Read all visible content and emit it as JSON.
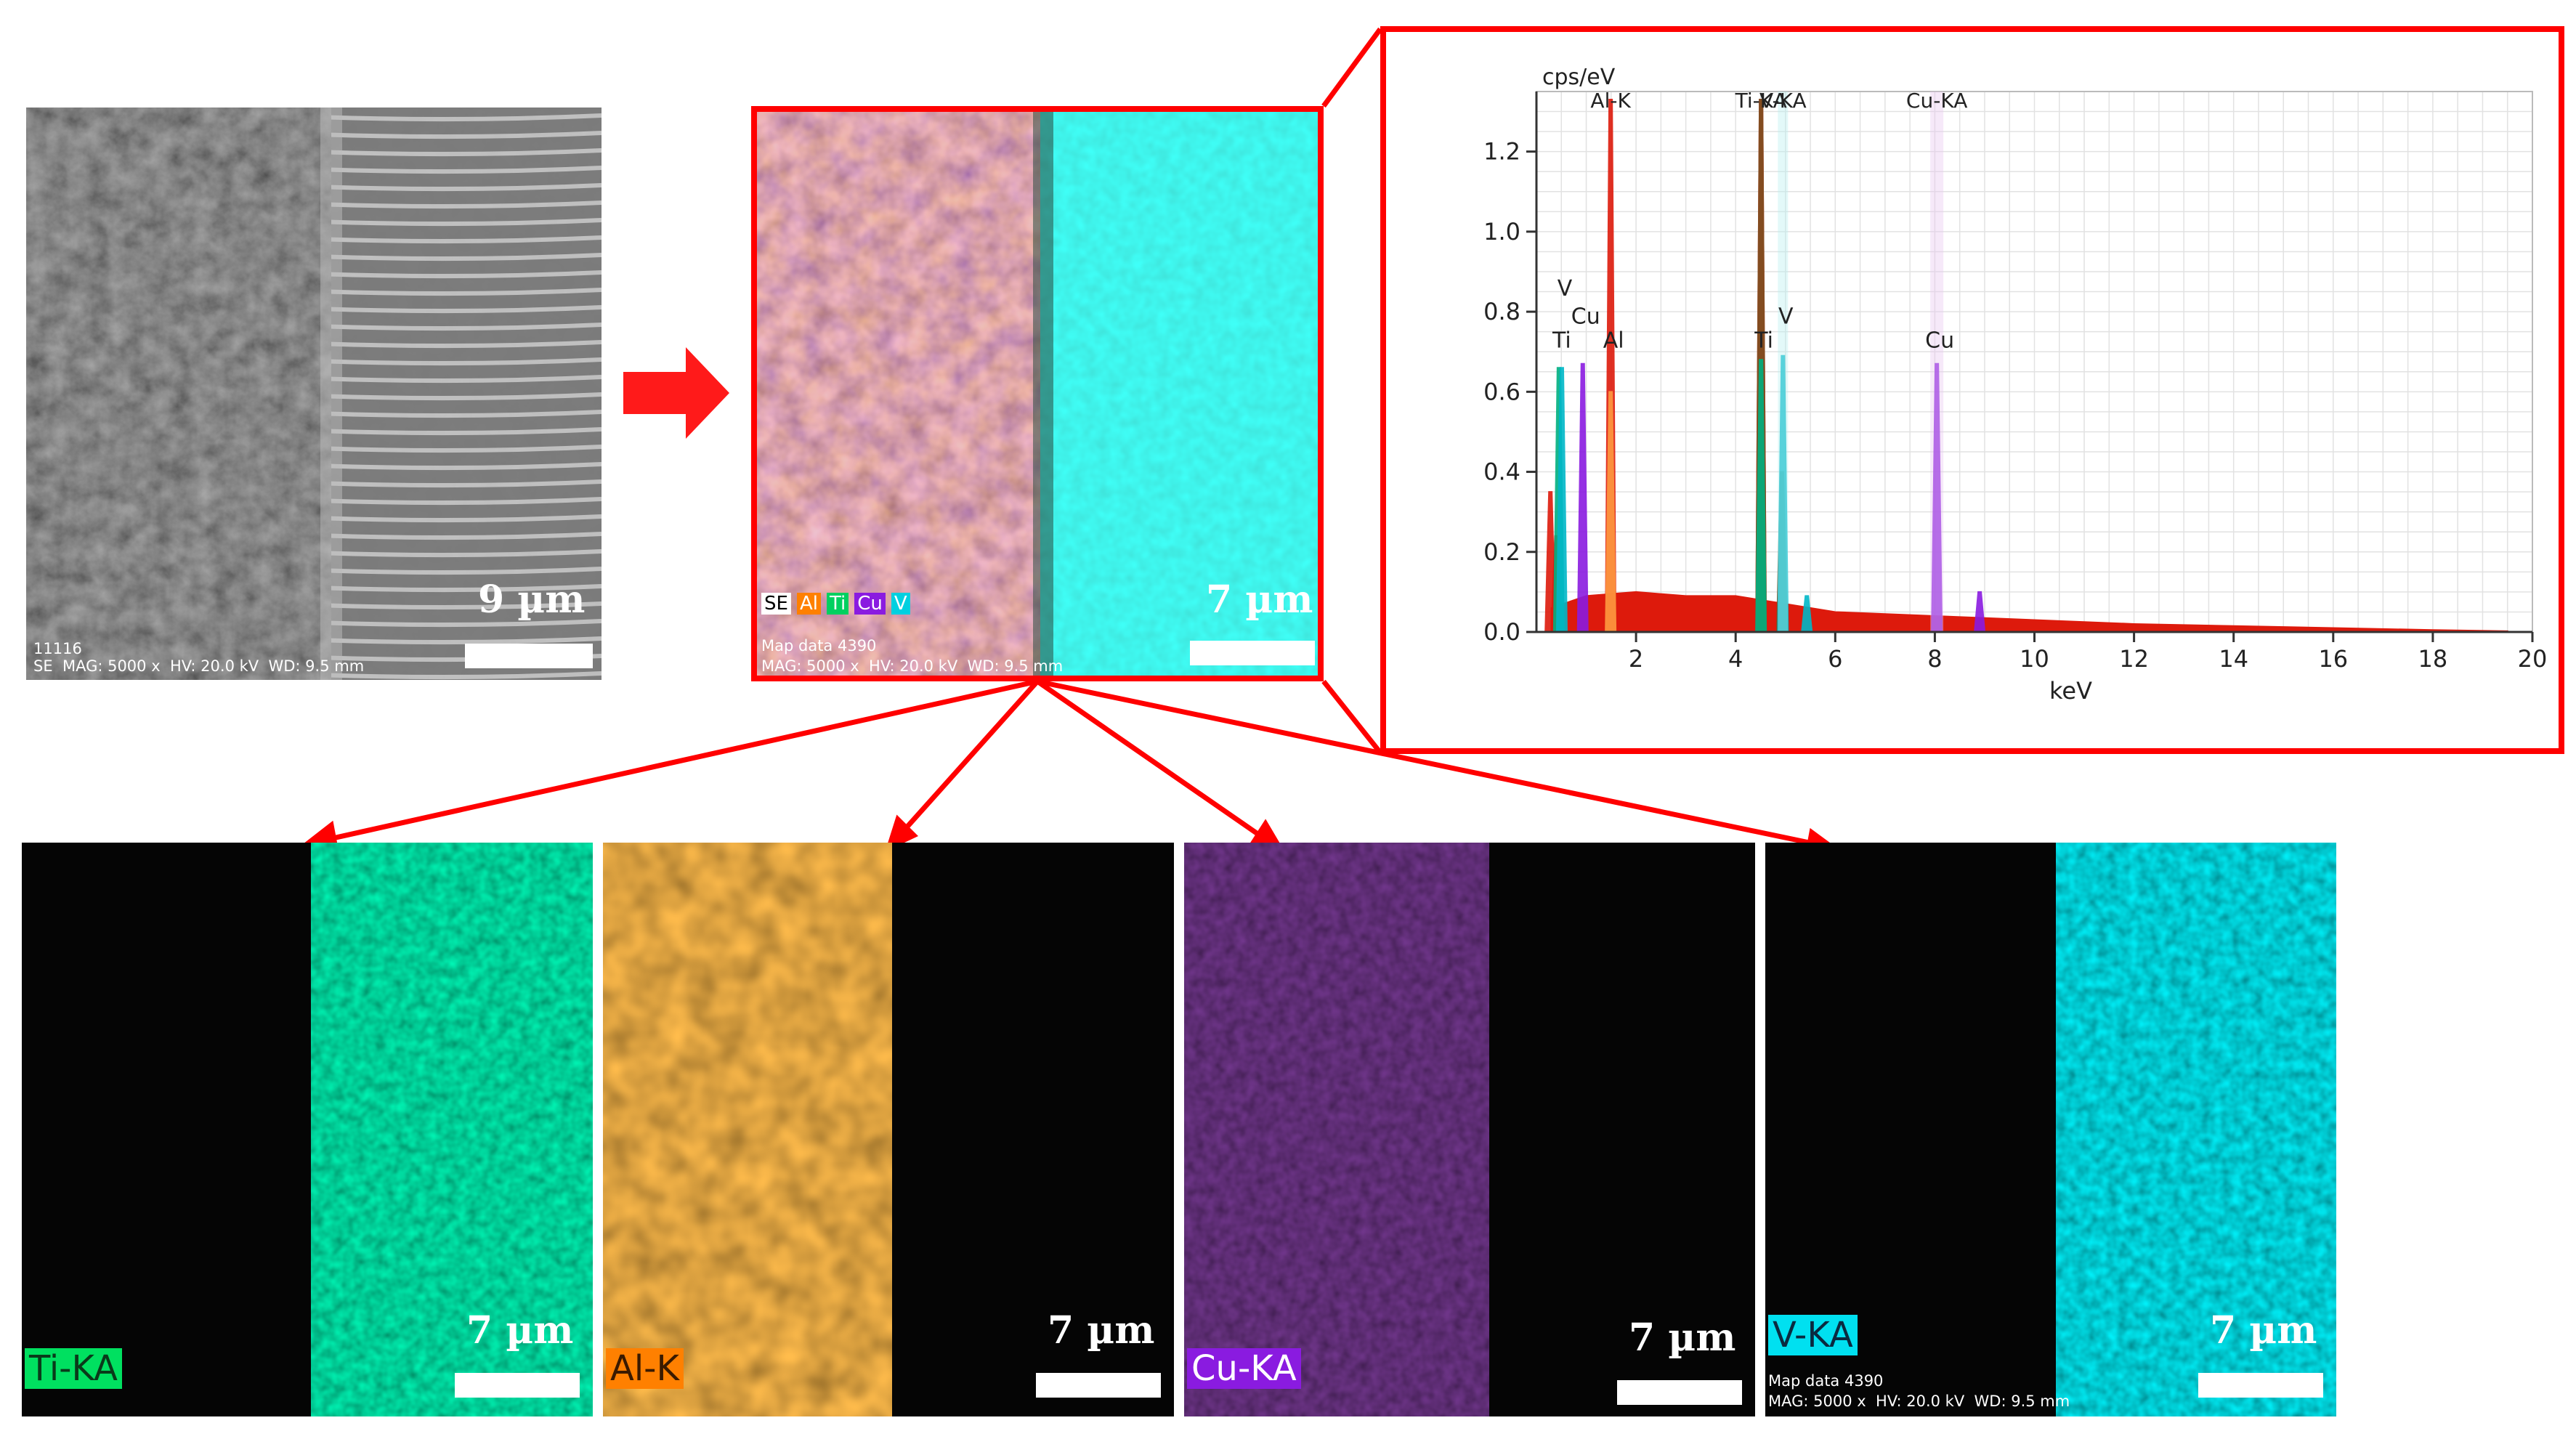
{
  "se_image": {
    "scale_label": "9 µm",
    "meta_line1": "11116",
    "meta_line2": "SE  MAG: 5000 x  HV: 20.0 kV  WD: 9.5 mm"
  },
  "composite": {
    "scale_label": "7 µm",
    "legend": [
      {
        "label": "SE",
        "bg": "#ffffff",
        "fg": "#000000"
      },
      {
        "label": "Al",
        "bg": "#ff8000",
        "fg": "#ffffff"
      },
      {
        "label": "Ti",
        "bg": "#00d060",
        "fg": "#ffffff"
      },
      {
        "label": "Cu",
        "bg": "#8a1be0",
        "fg": "#ffffff"
      },
      {
        "label": "V",
        "bg": "#00d0e0",
        "fg": "#ffffff"
      }
    ],
    "meta_line1": "Map data 4390",
    "meta_line2": "MAG: 5000 x  HV: 20.0 kV  WD: 9.5 mm"
  },
  "maps": [
    {
      "tag": "Ti-KA",
      "tag_bg": "#00e060",
      "tag_fg": "#0a3a1a",
      "color": "#00c060",
      "side": "right",
      "scale_label": "7 µm",
      "meta_line1": "",
      "meta_line2": ""
    },
    {
      "tag": "Al-K",
      "tag_bg": "#ff8000",
      "tag_fg": "#3a1a00",
      "color": "#e07010",
      "side": "left",
      "scale_label": "7 µm",
      "meta_line1": "",
      "meta_line2": ""
    },
    {
      "tag": "Cu-KA",
      "tag_bg": "#8a1be0",
      "tag_fg": "#ffffff",
      "color": "#7a18c8",
      "side": "left-sparse",
      "scale_label": "7 µm",
      "meta_line1": "",
      "meta_line2": ""
    },
    {
      "tag": "V-KA",
      "tag_bg": "#00e0f0",
      "tag_fg": "#0a2a40",
      "color": "#00b8c8",
      "side": "right",
      "scale_label": "7 µm",
      "meta_line1": "Map data 4390",
      "meta_line2": "MAG: 5000 x  HV: 20.0 kV  WD: 9.5 mm"
    }
  ],
  "colors": {
    "accent": "#ff0000"
  },
  "chart_data": {
    "type": "line",
    "ylabel": "cps/eV",
    "xlabel": "keV",
    "xlim": [
      0,
      20
    ],
    "ylim": [
      0,
      1.35
    ],
    "xticks": [
      2,
      4,
      6,
      8,
      10,
      12,
      14,
      16,
      18,
      20
    ],
    "yticks": [
      0.0,
      0.2,
      0.4,
      0.6,
      0.8,
      1.0,
      1.2
    ],
    "top_labels": [
      {
        "text": "Al-K",
        "x": 1.49
      },
      {
        "text": "Ti-KA",
        "x": 4.51
      },
      {
        "text": "V-KA",
        "x": 4.95
      },
      {
        "text": "Cu-KA",
        "x": 8.04
      }
    ],
    "peak_labels": [
      {
        "text": "V",
        "x": 0.51,
        "y": 0.84
      },
      {
        "text": "Cu",
        "x": 0.93,
        "y": 0.77
      },
      {
        "text": "Ti",
        "x": 0.45,
        "y": 0.71
      },
      {
        "text": "Al",
        "x": 1.49,
        "y": 0.71
      },
      {
        "text": "Ti",
        "x": 4.51,
        "y": 0.71
      },
      {
        "text": "V",
        "x": 4.95,
        "y": 0.77
      },
      {
        "text": "Cu",
        "x": 8.04,
        "y": 0.71
      }
    ],
    "series": [
      {
        "color": "#dd1a0c",
        "peaks": [
          [
            0.4,
            0.24
          ],
          [
            0.28,
            0.35
          ],
          [
            1.49,
            1.33
          ],
          [
            4.51,
            1.33
          ]
        ]
      },
      {
        "color": "#7a5020",
        "peaks": [
          [
            4.51,
            1.33
          ],
          [
            4.93,
            0.4
          ]
        ]
      },
      {
        "color": "#00b080",
        "peaks": [
          [
            0.45,
            0.66
          ],
          [
            4.51,
            0.68
          ]
        ]
      },
      {
        "color": "#00b8c8",
        "peaks": [
          [
            0.51,
            0.66
          ],
          [
            4.95,
            0.69
          ],
          [
            5.43,
            0.09
          ]
        ]
      },
      {
        "color": "#8a1be0",
        "peaks": [
          [
            0.93,
            0.67
          ],
          [
            8.04,
            0.67
          ],
          [
            8.9,
            0.1
          ]
        ]
      },
      {
        "color": "#ff9a40",
        "peaks": [
          [
            1.49,
            0.6
          ]
        ]
      }
    ],
    "continuum": [
      [
        0.3,
        0.06
      ],
      [
        1.0,
        0.09
      ],
      [
        2.0,
        0.1
      ],
      [
        3.0,
        0.09
      ],
      [
        4.0,
        0.09
      ],
      [
        5.0,
        0.07
      ],
      [
        6.0,
        0.05
      ],
      [
        8.0,
        0.04
      ],
      [
        10.0,
        0.03
      ],
      [
        12.0,
        0.02
      ],
      [
        14.0,
        0.015
      ],
      [
        16.0,
        0.01
      ],
      [
        18.0,
        0.005
      ],
      [
        19.5,
        0.002
      ]
    ]
  }
}
